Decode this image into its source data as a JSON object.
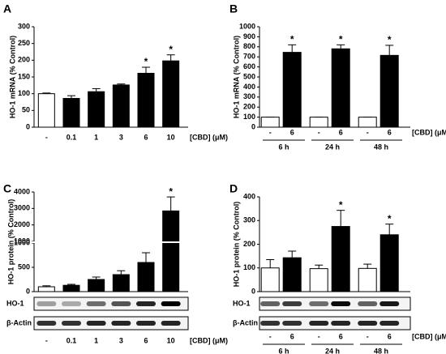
{
  "chart_data": [
    {
      "type": "bar",
      "panel": "A",
      "ylabel": "HO-1 mRNA (% Control)",
      "xlabel": "[CBD] (μM)",
      "categories": [
        "-",
        "0.1",
        "1",
        "3",
        "6",
        "10"
      ],
      "values": [
        100,
        86,
        106,
        126,
        161,
        198
      ],
      "errors": [
        2,
        8,
        9,
        3,
        18,
        18
      ],
      "colors": [
        "#ffffff",
        "#000000",
        "#000000",
        "#000000",
        "#000000",
        "#000000"
      ],
      "significance": [
        null,
        null,
        null,
        null,
        "*",
        "*"
      ],
      "ylim": [
        0,
        300
      ],
      "yticks": [
        0,
        50,
        100,
        150,
        200,
        250,
        300
      ]
    },
    {
      "type": "bar",
      "panel": "B",
      "ylabel": "HO-1 mRNA (% Control)",
      "xlabel": "[CBD] (μM)",
      "categories": [
        "-",
        "6",
        "-",
        "6",
        "-",
        "6"
      ],
      "group_labels": [
        "6 h",
        "24 h",
        "48 h"
      ],
      "values": [
        100,
        745,
        100,
        780,
        100,
        715
      ],
      "errors": [
        0,
        75,
        0,
        40,
        0,
        100
      ],
      "colors": [
        "#ffffff",
        "#000000",
        "#ffffff",
        "#000000",
        "#ffffff",
        "#000000"
      ],
      "significance": [
        null,
        "*",
        null,
        "*",
        null,
        "*"
      ],
      "ylim": [
        0,
        1000
      ],
      "yticks": [
        0,
        100,
        200,
        300,
        400,
        500,
        600,
        700,
        800,
        900,
        1000
      ]
    },
    {
      "type": "bar",
      "panel": "C",
      "ylabel": "HO-1 protein (% Control)",
      "xlabel": "[CBD] (μM)",
      "categories": [
        "-",
        "0.1",
        "1",
        "3",
        "6",
        "10"
      ],
      "blot_labels": [
        "HO-1",
        "β-Actin"
      ],
      "values": [
        100,
        130,
        250,
        350,
        600,
        2850
      ],
      "errors": [
        20,
        20,
        50,
        80,
        200,
        850
      ],
      "colors": [
        "#ffffff",
        "#000000",
        "#000000",
        "#000000",
        "#000000",
        "#000000"
      ],
      "significance": [
        null,
        null,
        null,
        null,
        null,
        "*"
      ],
      "ylim_lower": [
        0,
        1000
      ],
      "yticks_lower": [
        0,
        500,
        1000
      ],
      "ylim_upper": [
        1000,
        4000
      ],
      "yticks_upper": [
        1000,
        2000,
        3000,
        4000
      ]
    },
    {
      "type": "bar",
      "panel": "D",
      "ylabel": "HO-1 protein (% Control)",
      "xlabel": "[CBD] (μM)",
      "categories": [
        "-",
        "6",
        "-",
        "6",
        "-",
        "6"
      ],
      "group_labels": [
        "6 h",
        "24 h",
        "48 h"
      ],
      "blot_labels": [
        "HO-1",
        "β-Actin"
      ],
      "values": [
        100,
        143,
        97,
        275,
        98,
        240
      ],
      "errors": [
        35,
        28,
        15,
        68,
        18,
        45
      ],
      "colors": [
        "#ffffff",
        "#000000",
        "#ffffff",
        "#000000",
        "#ffffff",
        "#000000"
      ],
      "significance": [
        null,
        null,
        null,
        "*",
        null,
        "*"
      ],
      "ylim": [
        0,
        400
      ],
      "yticks": [
        0,
        100,
        200,
        300,
        400
      ]
    }
  ]
}
